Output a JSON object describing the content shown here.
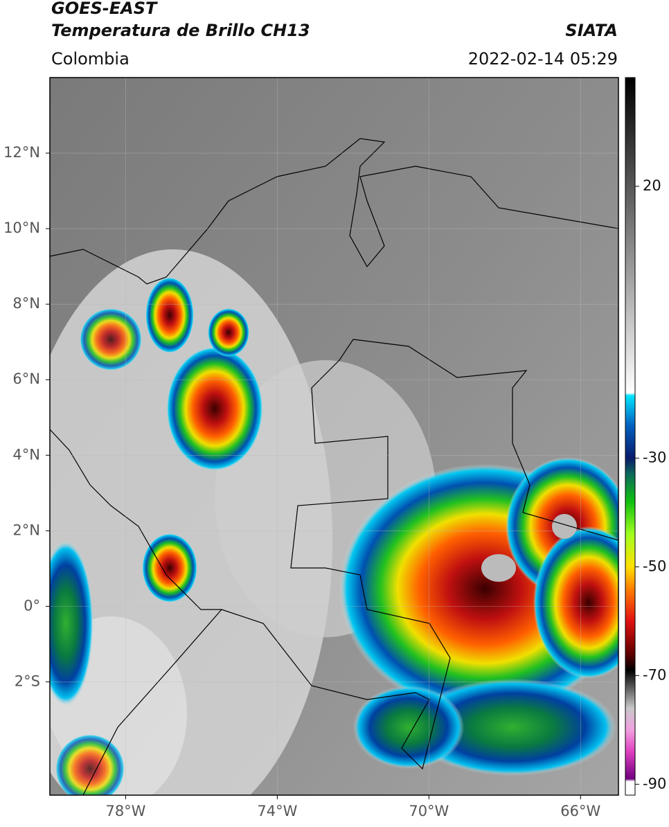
{
  "header": {
    "title": "GOES-EAST",
    "subtitle": "Temperatura de Brillo CH13",
    "source": "SIATA",
    "region": "Colombia",
    "datetime": "2022-02-14 05:29"
  },
  "map": {
    "xlim": [
      -80,
      -65
    ],
    "ylim": [
      -5,
      14
    ],
    "xticks": [
      {
        "value": -78,
        "label": "78°W"
      },
      {
        "value": -74,
        "label": "74°W"
      },
      {
        "value": -70,
        "label": "70°W"
      },
      {
        "value": -66,
        "label": "66°W"
      }
    ],
    "yticks": [
      {
        "value": 12,
        "label": "12°N"
      },
      {
        "value": 10,
        "label": "10°N"
      },
      {
        "value": 8,
        "label": "8°N"
      },
      {
        "value": 6,
        "label": "6°N"
      },
      {
        "value": 4,
        "label": "4°N"
      },
      {
        "value": 2,
        "label": "2°N"
      },
      {
        "value": 0,
        "label": "0°"
      },
      {
        "value": -2,
        "label": "2°S"
      }
    ],
    "grid": true
  },
  "colorbar": {
    "lim": [
      -92,
      40
    ],
    "ticks": [
      20,
      -30,
      -50,
      -70,
      -90
    ],
    "stops": [
      [
        40,
        "#000000"
      ],
      [
        -18,
        "#ffffff"
      ],
      [
        -18.5,
        "#00e5ff"
      ],
      [
        -24,
        "#0060c0"
      ],
      [
        -30,
        "#0a1a6a"
      ],
      [
        -33,
        "#0c6b5a"
      ],
      [
        -38,
        "#10c010"
      ],
      [
        -44,
        "#a0ff20"
      ],
      [
        -50,
        "#ffe000"
      ],
      [
        -54,
        "#ff8000"
      ],
      [
        -60,
        "#e01010"
      ],
      [
        -66,
        "#600000"
      ],
      [
        -69,
        "#000000"
      ],
      [
        -76,
        "#c8c8c8"
      ],
      [
        -80,
        "#f0a0e0"
      ],
      [
        -84,
        "#e040c0"
      ],
      [
        -89,
        "#700080"
      ],
      [
        -89.5,
        "#ffffff"
      ],
      [
        -92,
        "#ffffff"
      ]
    ]
  }
}
